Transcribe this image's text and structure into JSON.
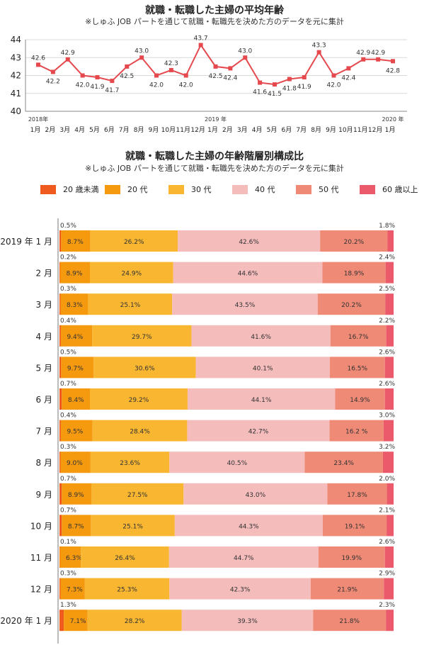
{
  "chart_data": [
    {
      "type": "line",
      "title": "就職・転職した主婦の平均年齢",
      "subtitle": "※しゅふ JOB パートを通じて就職・転職先を決めた方のデータを元に集計",
      "ylim": [
        40,
        44
      ],
      "yticks": [
        40,
        41,
        42,
        43,
        44
      ],
      "grid": true,
      "color": "#e5484d",
      "x": [
        "1月",
        "2月",
        "3月",
        "4月",
        "5月",
        "6月",
        "7月",
        "8月",
        "9月",
        "10月",
        "11月",
        "12月",
        "1月",
        "2月",
        "3月",
        "4月",
        "5月",
        "6月",
        "7月",
        "8月",
        "9月",
        "10月",
        "11月",
        "12月",
        "1月"
      ],
      "year_labels": [
        {
          "index": 0,
          "text": "2018年"
        },
        {
          "index": 12,
          "text": "2019 年"
        },
        {
          "index": 24,
          "text": "2020 年"
        }
      ],
      "values": [
        42.6,
        42.2,
        42.9,
        42.0,
        41.9,
        41.7,
        42.5,
        43.0,
        42.0,
        42.3,
        42.0,
        43.7,
        42.5,
        42.4,
        43.0,
        41.6,
        41.5,
        41.8,
        41.9,
        43.3,
        42.0,
        42.4,
        42.9,
        42.9,
        42.8
      ],
      "value_labels": [
        "42.6",
        "42.2",
        "42.9",
        "42.0",
        "41.9",
        "41.7",
        "42.5",
        "43.0",
        "42.0",
        "42.3",
        "42.0",
        "43.7",
        "42.5",
        "42.4",
        "43.0",
        "41.6",
        "41.5",
        "41.8",
        "41.9",
        "43.3",
        "42.0",
        "42.4",
        "42.9",
        "42.9",
        "42.8"
      ]
    },
    {
      "type": "bar",
      "stacked": "percent",
      "orientation": "horizontal",
      "title": "就職・転職した主婦の年齢階層別構成比",
      "subtitle": "※しゅふ JOB パートを通じて就職・転職先を決めた方のデータを元に集計",
      "legend_position": "top",
      "categories": [
        "2019 年 1 月",
        "2 月",
        "3 月",
        "4 月",
        "5 月",
        "6 月",
        "7 月",
        "8 月",
        "9 月",
        "10 月",
        "11 月",
        "12 月",
        "2020 年 1 月"
      ],
      "series": [
        {
          "name": "20 歳未満",
          "color": "#ef5a1e",
          "values": [
            0.5,
            0.2,
            0.3,
            0.4,
            0.5,
            0.7,
            0.4,
            0.3,
            0.7,
            0.7,
            0.1,
            0.3,
            1.3
          ],
          "labels": [
            "0.5%",
            "0.2%",
            "0.3%",
            "0.4%",
            "0.5%",
            "0.7%",
            "0.4%",
            "0.3%",
            "0.7%",
            "0.7%",
            "0.1%",
            "0.3%",
            "1.3%"
          ]
        },
        {
          "name": "20 代",
          "color": "#f59a0f",
          "values": [
            8.7,
            8.9,
            8.3,
            9.4,
            9.7,
            8.4,
            9.5,
            9.0,
            8.9,
            8.7,
            6.3,
            7.3,
            7.1
          ],
          "labels": [
            "8.7%",
            "8.9%",
            "8.3%",
            "9.4%",
            "9.7%",
            "8.4%",
            "9.5%",
            "9.0%",
            "8.9%",
            "8.7%",
            "6.3%",
            "7.3%",
            "7.1%"
          ]
        },
        {
          "name": "30 代",
          "color": "#f8b631",
          "values": [
            26.2,
            24.9,
            25.1,
            29.7,
            30.6,
            29.2,
            28.4,
            23.6,
            27.5,
            25.1,
            26.4,
            25.3,
            28.2
          ],
          "labels": [
            "26.2%",
            "24.9%",
            "25.1%",
            "29.7%",
            "30.6%",
            "29.2%",
            "28.4%",
            "23.6%",
            "27.5%",
            "25.1%",
            "26.4%",
            "25.3%",
            "28.2%"
          ]
        },
        {
          "name": "40 代",
          "color": "#f5bcbc",
          "values": [
            42.6,
            44.6,
            43.5,
            41.6,
            40.1,
            44.1,
            42.7,
            40.5,
            43.0,
            44.3,
            44.7,
            42.3,
            39.3
          ],
          "labels": [
            "42.6%",
            "44.6%",
            "43.5%",
            "41.6%",
            "40.1%",
            "44.1%",
            "42.7%",
            "40.5%",
            "43.0%",
            "44.3%",
            "44.7%",
            "42.3%",
            "39.3%"
          ]
        },
        {
          "name": "50 代",
          "color": "#ef8a76",
          "values": [
            20.2,
            18.9,
            20.2,
            16.7,
            16.5,
            14.9,
            16.2,
            23.4,
            17.8,
            19.1,
            19.9,
            21.9,
            21.8
          ],
          "labels": [
            "20.2%",
            "18.9%",
            "20.2%",
            "16.7%",
            "16.5%",
            "14.9%",
            "16.2 %",
            "23.4%",
            "17.8%",
            "19.1%",
            "19.9%",
            "21.9%",
            "21.8%"
          ]
        },
        {
          "name": "60 歳以上",
          "color": "#ea5a6b",
          "values": [
            1.8,
            2.4,
            2.5,
            2.2,
            2.6,
            2.6,
            3.0,
            3.2,
            2.0,
            2.1,
            2.6,
            2.9,
            2.3
          ],
          "labels": [
            "1.8%",
            "2.4%",
            "2.5%",
            "2.2%",
            "2.6%",
            "2.6%",
            "3.0%",
            "3.2%",
            "2.0%",
            "2.1%",
            "2.6%",
            "2.9%",
            "2.3%"
          ]
        }
      ]
    }
  ]
}
